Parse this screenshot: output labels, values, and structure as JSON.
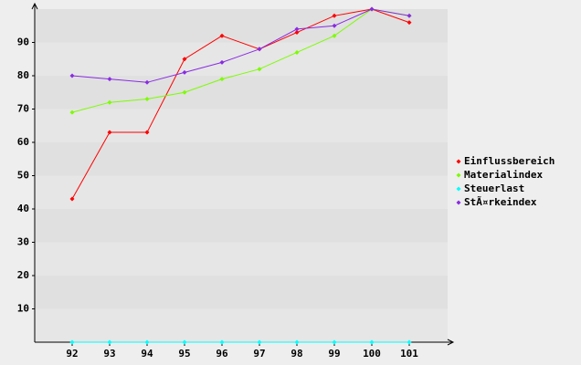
{
  "chart_data": {
    "type": "line",
    "categories": [
      "92",
      "93",
      "94",
      "95",
      "96",
      "97",
      "98",
      "99",
      "100",
      "101"
    ],
    "series": [
      {
        "name": "Einflussbereich",
        "color": "#ff0000",
        "values": [
          43,
          63,
          63,
          85,
          92,
          88,
          93,
          98,
          100,
          96
        ]
      },
      {
        "name": "Materialindex",
        "color": "#7cfc00",
        "values": [
          69,
          72,
          73,
          75,
          79,
          82,
          87,
          92,
          100,
          98
        ]
      },
      {
        "name": "Steuerlast",
        "color": "#00ffff",
        "values": [
          0,
          0,
          0,
          0,
          0,
          0,
          0,
          0,
          0,
          0
        ]
      },
      {
        "name": "StÃ¤rkeindex",
        "color": "#8a2be2",
        "values": [
          80,
          79,
          78,
          81,
          84,
          88,
          94,
          95,
          100,
          98
        ]
      }
    ],
    "ylim": [
      0,
      100
    ],
    "yticks": [
      10,
      20,
      30,
      40,
      50,
      60,
      70,
      80,
      90
    ],
    "grid": true,
    "legend": "right"
  }
}
